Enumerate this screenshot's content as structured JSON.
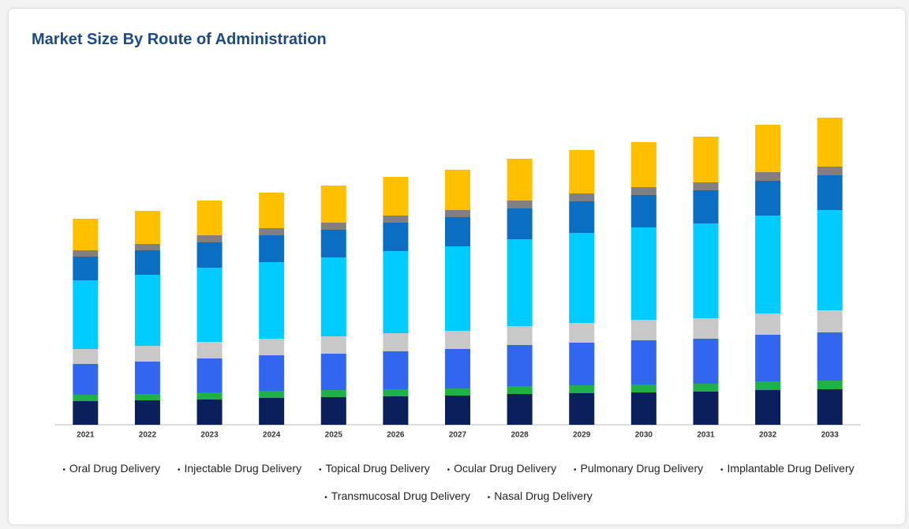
{
  "chart_data": {
    "type": "stacked-bar",
    "title": "Market Size By Route of Administration",
    "categories": [
      "2021",
      "2022",
      "2023",
      "2024",
      "2025",
      "2026",
      "2027",
      "2028",
      "2029",
      "2030",
      "2031",
      "2032",
      "2033"
    ],
    "series": [
      {
        "name": "Oral Drug Delivery",
        "color": "#0a1f5c",
        "values": [
          30,
          31,
          32,
          34,
          35,
          36,
          37,
          39,
          40,
          41,
          42,
          44,
          45
        ]
      },
      {
        "name": "Injectable Drug Delivery",
        "color": "#1fb04a",
        "values": [
          8,
          8,
          9,
          9,
          9,
          9,
          9,
          10,
          10,
          10,
          10,
          11,
          11
        ]
      },
      {
        "name": "Topical Drug Delivery",
        "color": "#3366ee",
        "values": [
          39,
          41,
          43,
          45,
          46,
          48,
          50,
          52,
          54,
          56,
          57,
          59,
          61
        ]
      },
      {
        "name": "Ocular Drug Delivery",
        "color": "#c8c8c8",
        "values": [
          19,
          20,
          21,
          21,
          22,
          23,
          23,
          24,
          25,
          26,
          26,
          27,
          28
        ]
      },
      {
        "name": "Pulmonary Drug Delivery",
        "color": "#00ccff",
        "values": [
          87,
          90,
          94,
          97,
          100,
          104,
          107,
          110,
          114,
          117,
          120,
          124,
          127
        ]
      },
      {
        "name": "Implantable Drug Delivery",
        "color": "#0a6fc2",
        "values": [
          30,
          31,
          32,
          34,
          35,
          36,
          37,
          39,
          40,
          41,
          42,
          44,
          44
        ]
      },
      {
        "name": "Transmucosal Drug Delivery",
        "color": "#808080",
        "values": [
          8,
          8,
          9,
          9,
          9,
          9,
          9,
          10,
          10,
          10,
          10,
          11,
          11
        ]
      },
      {
        "name": "Nasal Drug Delivery",
        "color": "#ffc000",
        "values": [
          40,
          42,
          44,
          45,
          47,
          49,
          51,
          53,
          55,
          57,
          58,
          60,
          62
        ]
      }
    ]
  }
}
